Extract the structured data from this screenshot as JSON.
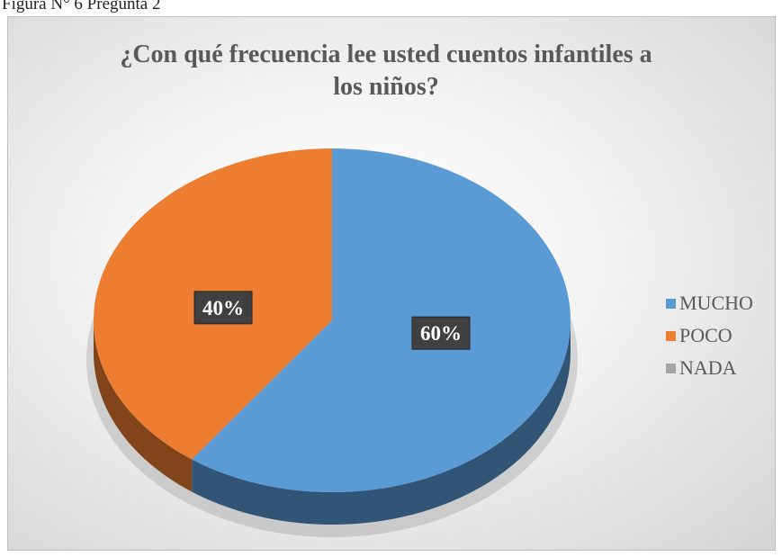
{
  "caption": "Figura N° 6 Pregunta  2",
  "chart_data": {
    "type": "pie",
    "title": "¿Con qué frecuencia lee usted cuentos infantiles a los niños?",
    "categories": [
      "MUCHO",
      "POCO",
      "NADA"
    ],
    "values": [
      60,
      40,
      0
    ],
    "value_labels": [
      "60%",
      "40%",
      null
    ],
    "colors": [
      "#5b9bd5",
      "#ed7d31",
      "#a5a5a5"
    ],
    "legend": "right"
  }
}
